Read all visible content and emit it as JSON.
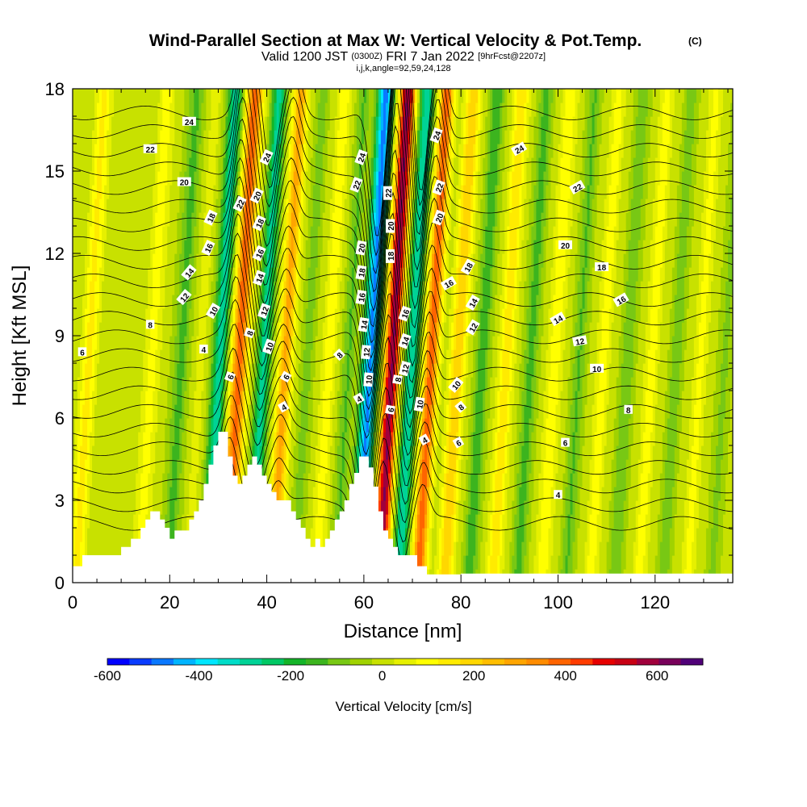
{
  "chart_data": {
    "type": "heatmap",
    "title": "Wind-Parallel Section at Max W: Vertical Velocity & Pot.Temp.",
    "title_mark": "(C)",
    "subtitle_prefix": "Valid 1200 JST",
    "subtitle_utc": "(0300Z)",
    "subtitle_date": "FRI 7 Jan 2022",
    "subtitle_fcst": "[9hrFcst@2207z]",
    "subtitle_params": "i,j,k,angle=92,59,24,128",
    "xlabel": "Distance [nm]",
    "ylabel": "Height [Kft MSL]",
    "xlim": [
      0,
      136
    ],
    "ylim": [
      0,
      18
    ],
    "x_ticks": [
      0,
      20,
      40,
      60,
      80,
      100,
      120
    ],
    "y_ticks": [
      0,
      3,
      6,
      9,
      12,
      15,
      18
    ],
    "colorbar": {
      "label": "Vertical Velocity [cm/s]",
      "range": [
        -600,
        700
      ],
      "step": 50,
      "tick_values": [
        -600,
        -400,
        -200,
        0,
        200,
        400,
        600
      ],
      "tick_labels": [
        "-600",
        "-400",
        "-200",
        "0",
        "200",
        "400",
        "600"
      ],
      "colors": [
        "#0000ff",
        "#0a3cff",
        "#0a78ff",
        "#00b4ff",
        "#00e6ff",
        "#00dcc8",
        "#00d296",
        "#00c864",
        "#14b428",
        "#3cb41e",
        "#78c814",
        "#a0d200",
        "#c8e100",
        "#e6f000",
        "#ffff00",
        "#ffeb00",
        "#ffd700",
        "#ffbe00",
        "#ffa500",
        "#ff8c00",
        "#ff6400",
        "#ff3c00",
        "#e60000",
        "#c80014",
        "#a0003c",
        "#78005a",
        "#500078"
      ]
    },
    "velocity_bands": [
      {
        "x": 2,
        "w": 150,
        "bw": 1.6
      },
      {
        "x": 9,
        "w": 20,
        "bw": 1.4
      },
      {
        "x": 15,
        "w": 110,
        "bw": 1.6
      },
      {
        "x": 21,
        "w": -130,
        "bw": 1.6
      },
      {
        "x": 25,
        "w": 60,
        "bw": 1.2
      },
      {
        "x": 29,
        "w": -300,
        "bw": 1.6
      },
      {
        "x": 33,
        "w": 420,
        "bw": 1.7
      },
      {
        "x": 38,
        "w": -280,
        "bw": 1.5
      },
      {
        "x": 42.5,
        "w": 300,
        "bw": 1.5
      },
      {
        "x": 47,
        "w": -90,
        "bw": 1.3
      },
      {
        "x": 51.5,
        "w": 120,
        "bw": 1.4
      },
      {
        "x": 55.5,
        "w": -120,
        "bw": 1.3
      },
      {
        "x": 60,
        "w": -480,
        "bw": 1.7
      },
      {
        "x": 64.5,
        "w": 640,
        "bw": 1.6
      },
      {
        "x": 68.5,
        "w": -300,
        "bw": 1.6
      },
      {
        "x": 72.5,
        "w": 420,
        "bw": 1.5
      },
      {
        "x": 78,
        "w": 230,
        "bw": 1.6
      },
      {
        "x": 83,
        "w": -160,
        "bw": 1.4
      },
      {
        "x": 88,
        "w": 180,
        "bw": 1.5
      },
      {
        "x": 93,
        "w": -140,
        "bw": 1.4
      },
      {
        "x": 98,
        "w": 130,
        "bw": 1.5
      },
      {
        "x": 103,
        "w": -120,
        "bw": 1.3
      },
      {
        "x": 108,
        "w": 110,
        "bw": 1.4
      },
      {
        "x": 113,
        "w": -110,
        "bw": 1.4
      },
      {
        "x": 118,
        "w": 110,
        "bw": 1.4
      },
      {
        "x": 123,
        "w": -100,
        "bw": 1.3
      },
      {
        "x": 128,
        "w": 100,
        "bw": 1.4
      },
      {
        "x": 133,
        "w": -80,
        "bw": 1.3
      }
    ],
    "terrain": [
      [
        0,
        0.6
      ],
      [
        2,
        0.6
      ],
      [
        2,
        1
      ],
      [
        10,
        1
      ],
      [
        10,
        1.3
      ],
      [
        12,
        1.3
      ],
      [
        12,
        1.6
      ],
      [
        14,
        1.6
      ],
      [
        14,
        2
      ],
      [
        15,
        2
      ],
      [
        15,
        2.3
      ],
      [
        16,
        2.3
      ],
      [
        16,
        2.6
      ],
      [
        18,
        2.6
      ],
      [
        18,
        2.3
      ],
      [
        19,
        2.3
      ],
      [
        19,
        2
      ],
      [
        20,
        2
      ],
      [
        20,
        1.6
      ],
      [
        21,
        1.6
      ],
      [
        21,
        1.9
      ],
      [
        24,
        1.9
      ],
      [
        24,
        2.3
      ],
      [
        25,
        2.3
      ],
      [
        25,
        2.6
      ],
      [
        26,
        2.6
      ],
      [
        26,
        3
      ],
      [
        27,
        3
      ],
      [
        27,
        3.6
      ],
      [
        28,
        3.6
      ],
      [
        28,
        4.3
      ],
      [
        29,
        4.3
      ],
      [
        29,
        5
      ],
      [
        30,
        5
      ],
      [
        30,
        5.5
      ],
      [
        32,
        5.5
      ],
      [
        32,
        4.6
      ],
      [
        33,
        4.6
      ],
      [
        33,
        3.9
      ],
      [
        34,
        3.9
      ],
      [
        34,
        3.6
      ],
      [
        35,
        3.6
      ],
      [
        35,
        3.9
      ],
      [
        36,
        3.9
      ],
      [
        36,
        4.3
      ],
      [
        37,
        4.3
      ],
      [
        37,
        4.6
      ],
      [
        38,
        4.6
      ],
      [
        38,
        4.3
      ],
      [
        39,
        4.3
      ],
      [
        39,
        3.9
      ],
      [
        40,
        3.9
      ],
      [
        40,
        3.6
      ],
      [
        41,
        3.6
      ],
      [
        41,
        3.3
      ],
      [
        42,
        3.3
      ],
      [
        42,
        3
      ],
      [
        45,
        3
      ],
      [
        45,
        2.6
      ],
      [
        46,
        2.6
      ],
      [
        46,
        2.3
      ],
      [
        47,
        2.3
      ],
      [
        47,
        2
      ],
      [
        48,
        2
      ],
      [
        48,
        1.6
      ],
      [
        49,
        1.6
      ],
      [
        49,
        1.3
      ],
      [
        50,
        1.3
      ],
      [
        50,
        1.6
      ],
      [
        51,
        1.6
      ],
      [
        51,
        1.3
      ],
      [
        52,
        1.3
      ],
      [
        52,
        1.6
      ],
      [
        53,
        1.6
      ],
      [
        53,
        1.9
      ],
      [
        54,
        1.9
      ],
      [
        54,
        2.3
      ],
      [
        55,
        2.3
      ],
      [
        55,
        2.6
      ],
      [
        56,
        2.6
      ],
      [
        56,
        3
      ],
      [
        57,
        3
      ],
      [
        57,
        3.6
      ],
      [
        58,
        3.6
      ],
      [
        58,
        4
      ],
      [
        59,
        4
      ],
      [
        59,
        4.6
      ],
      [
        61,
        4.6
      ],
      [
        61,
        4.2
      ],
      [
        62,
        4.2
      ],
      [
        62,
        3.5
      ],
      [
        63,
        3.5
      ],
      [
        63,
        2.6
      ],
      [
        64,
        2.6
      ],
      [
        64,
        1.9
      ],
      [
        65,
        1.9
      ],
      [
        65,
        1.6
      ],
      [
        66,
        1.6
      ],
      [
        66,
        1.3
      ],
      [
        67,
        1.3
      ],
      [
        67,
        1
      ],
      [
        71,
        1
      ],
      [
        71,
        0.6
      ],
      [
        73,
        0.6
      ],
      [
        73,
        0.3
      ],
      [
        80,
        0.3
      ],
      [
        80,
        0.33
      ],
      [
        136,
        0.33
      ]
    ],
    "theta_levels": [
      4,
      6,
      8,
      10,
      12,
      14,
      16,
      18,
      20,
      22,
      24
    ],
    "contour_labels": [
      {
        "x": 24,
        "y": 16.8,
        "text": "24",
        "rot": 0
      },
      {
        "x": 16,
        "y": 15.8,
        "text": "22",
        "rot": 0
      },
      {
        "x": 23,
        "y": 14.6,
        "text": "20",
        "rot": 0
      },
      {
        "x": 28.5,
        "y": 13.3,
        "text": "18",
        "rot": -65
      },
      {
        "x": 28,
        "y": 12.2,
        "text": "16",
        "rot": -65
      },
      {
        "x": 24,
        "y": 11.3,
        "text": "14",
        "rot": -50
      },
      {
        "x": 23,
        "y": 10.4,
        "text": "12",
        "rot": -50
      },
      {
        "x": 29,
        "y": 9.9,
        "text": "10",
        "rot": -60
      },
      {
        "x": 16,
        "y": 9.4,
        "text": "8",
        "rot": 0
      },
      {
        "x": 2,
        "y": 8.4,
        "text": "6",
        "rot": 0
      },
      {
        "x": 27,
        "y": 8.5,
        "text": "4",
        "rot": 0
      },
      {
        "x": 40,
        "y": 15.5,
        "text": "24",
        "rot": -65
      },
      {
        "x": 34.5,
        "y": 13.8,
        "text": "22",
        "rot": -65
      },
      {
        "x": 38,
        "y": 14.1,
        "text": "20",
        "rot": -65
      },
      {
        "x": 38.5,
        "y": 13.1,
        "text": "18",
        "rot": -65
      },
      {
        "x": 38.5,
        "y": 12.0,
        "text": "16",
        "rot": -65
      },
      {
        "x": 38.5,
        "y": 11.1,
        "text": "14",
        "rot": -70
      },
      {
        "x": 39.5,
        "y": 9.9,
        "text": "12",
        "rot": -70
      },
      {
        "x": 40.5,
        "y": 8.6,
        "text": "10",
        "rot": -70
      },
      {
        "x": 36.5,
        "y": 9.1,
        "text": "8",
        "rot": -70
      },
      {
        "x": 32.5,
        "y": 7.5,
        "text": "6",
        "rot": -70
      },
      {
        "x": 44,
        "y": 7.5,
        "text": "6",
        "rot": -60
      },
      {
        "x": 43.5,
        "y": 6.4,
        "text": "4",
        "rot": -30
      },
      {
        "x": 59.5,
        "y": 15.5,
        "text": "24",
        "rot": -70
      },
      {
        "x": 58.5,
        "y": 14.5,
        "text": "22",
        "rot": -70
      },
      {
        "x": 59.5,
        "y": 12.2,
        "text": "20",
        "rot": -80
      },
      {
        "x": 59.5,
        "y": 11.3,
        "text": "18",
        "rot": -80
      },
      {
        "x": 59.5,
        "y": 10.4,
        "text": "16",
        "rot": -80
      },
      {
        "x": 60,
        "y": 9.4,
        "text": "14",
        "rot": -80
      },
      {
        "x": 60.5,
        "y": 8.4,
        "text": "12",
        "rot": -85
      },
      {
        "x": 61,
        "y": 7.4,
        "text": "10",
        "rot": -85
      },
      {
        "x": 55,
        "y": 8.3,
        "text": "8",
        "rot": -45
      },
      {
        "x": 59,
        "y": 6.7,
        "text": "4",
        "rot": -30
      },
      {
        "x": 65,
        "y": 14.2,
        "text": "22",
        "rot": -90
      },
      {
        "x": 65.5,
        "y": 13.0,
        "text": "20",
        "rot": -90
      },
      {
        "x": 65.5,
        "y": 11.9,
        "text": "18",
        "rot": -90
      },
      {
        "x": 68.5,
        "y": 9.8,
        "text": "16",
        "rot": -70
      },
      {
        "x": 68.5,
        "y": 8.8,
        "text": "14",
        "rot": -70
      },
      {
        "x": 68.5,
        "y": 7.8,
        "text": "12",
        "rot": -75
      },
      {
        "x": 67,
        "y": 7.4,
        "text": "8",
        "rot": -80
      },
      {
        "x": 65.5,
        "y": 6.3,
        "text": "6",
        "rot": -80
      },
      {
        "x": 71.5,
        "y": 6.5,
        "text": "10",
        "rot": -80
      },
      {
        "x": 72.5,
        "y": 5.2,
        "text": "4",
        "rot": -30
      },
      {
        "x": 75,
        "y": 16.3,
        "text": "24",
        "rot": -70
      },
      {
        "x": 75.5,
        "y": 14.4,
        "text": "22",
        "rot": -70
      },
      {
        "x": 75.5,
        "y": 13.3,
        "text": "20",
        "rot": -70
      },
      {
        "x": 77.5,
        "y": 10.9,
        "text": "16",
        "rot": -30
      },
      {
        "x": 81.5,
        "y": 11.5,
        "text": "18",
        "rot": -60
      },
      {
        "x": 82.5,
        "y": 10.2,
        "text": "14",
        "rot": -60
      },
      {
        "x": 82.5,
        "y": 9.3,
        "text": "12",
        "rot": -60
      },
      {
        "x": 79,
        "y": 7.2,
        "text": "10",
        "rot": -50
      },
      {
        "x": 80,
        "y": 6.4,
        "text": "8",
        "rot": -40
      },
      {
        "x": 79.5,
        "y": 5.1,
        "text": "6",
        "rot": -30
      },
      {
        "x": 92,
        "y": 15.8,
        "text": "24",
        "rot": -30
      },
      {
        "x": 104,
        "y": 14.4,
        "text": "22",
        "rot": -30
      },
      {
        "x": 101.5,
        "y": 12.3,
        "text": "20",
        "rot": 0
      },
      {
        "x": 109,
        "y": 11.5,
        "text": "18",
        "rot": 0
      },
      {
        "x": 113,
        "y": 10.3,
        "text": "16",
        "rot": -30
      },
      {
        "x": 100,
        "y": 9.6,
        "text": "14",
        "rot": -30
      },
      {
        "x": 104.5,
        "y": 8.8,
        "text": "12",
        "rot": -10
      },
      {
        "x": 108,
        "y": 7.8,
        "text": "10",
        "rot": 0
      },
      {
        "x": 114.5,
        "y": 6.3,
        "text": "8",
        "rot": 0
      },
      {
        "x": 101.5,
        "y": 5.1,
        "text": "6",
        "rot": 0
      },
      {
        "x": 100,
        "y": 3.2,
        "text": "4",
        "rot": 0
      }
    ]
  }
}
